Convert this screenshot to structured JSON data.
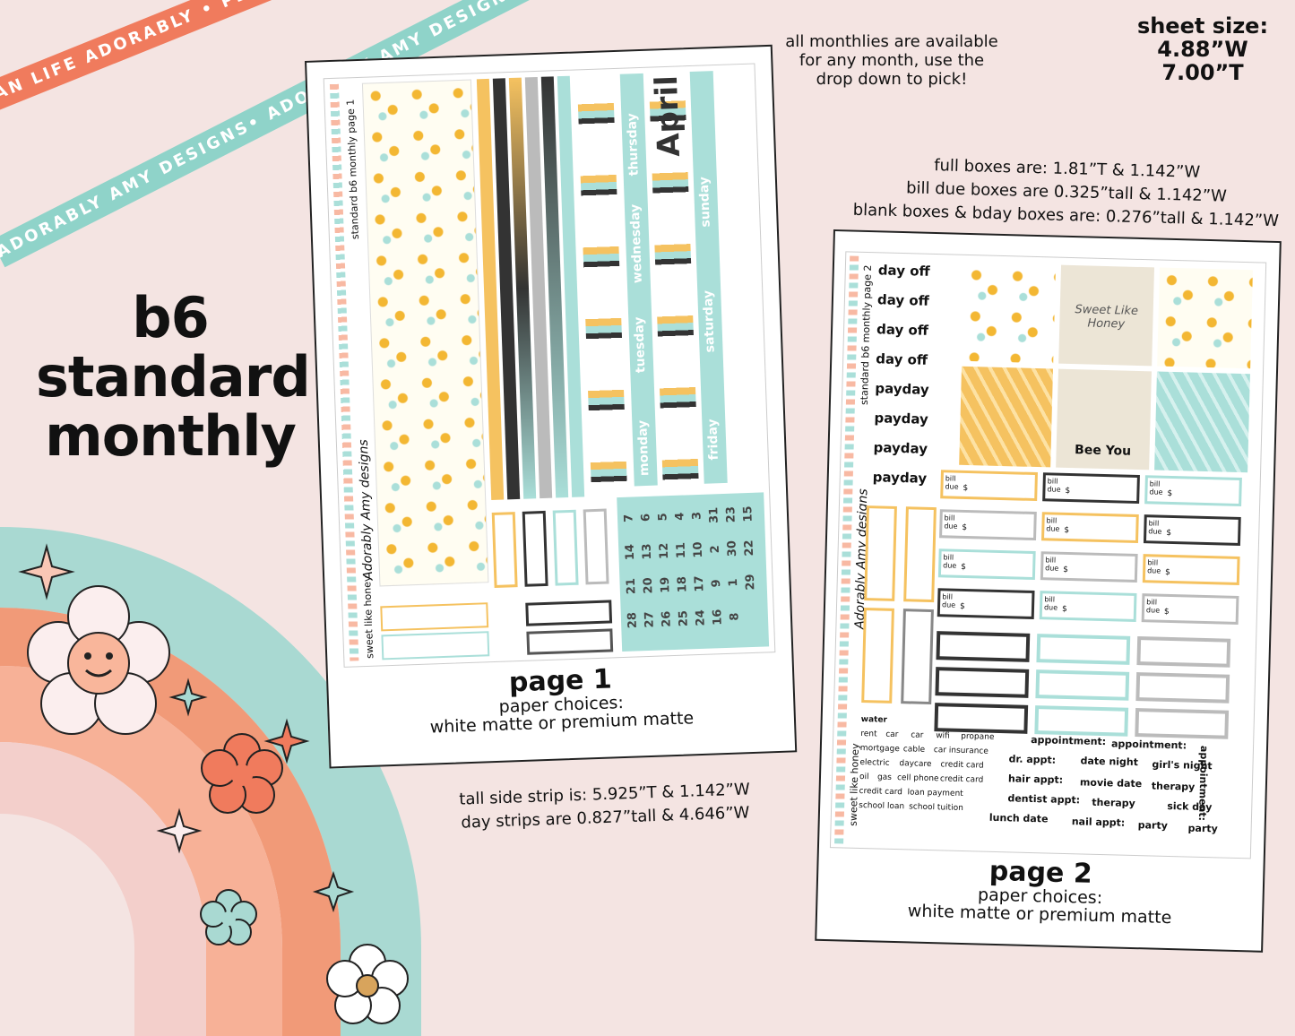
{
  "ribbons": {
    "top_text": "PLAN LIFE ADORABLY • PLAN LIFE ADORABLY • PLAN LIFE ADORABLY • PLAN LIFE ADORABLY •",
    "bottom_text": "ADORABLY AMY DESIGNS• ADORABLY AMY DESIGNS• ADORABLY AMY DESIGNS• ADORABLY AMY DESIGNS•",
    "top_color": "#f07b5d",
    "bottom_color": "#8fd3c9"
  },
  "title": {
    "line1": "b6",
    "line2": "standard",
    "line3": "monthly"
  },
  "notes": {
    "availability": [
      "all monthlies are available",
      "for any month, use the",
      "drop down to pick!"
    ],
    "sheet_size": [
      "sheet size:",
      "4.88”W",
      "7.00”T"
    ],
    "boxes": [
      "full boxes are: 1.81”T & 1.142”W",
      "bill due boxes are 0.325”tall & 1.142”W",
      "blank boxes & bday boxes are: 0.276”tall & 1.142”W"
    ],
    "strips": [
      "tall side strip is: 5.925”T & 1.142”W",
      "day strips are 0.827”tall & 4.646”W"
    ]
  },
  "page1": {
    "caption": "page 1",
    "paper": [
      "paper choices:",
      "white matte or premium matte"
    ],
    "side_label": "standard b6 monthly page 1",
    "theme": "sweet like honey",
    "brand": "Adorably Amy designs",
    "month": "April",
    "days": [
      "thursday",
      "wednesday",
      "tuesday",
      "monday",
      "sunday",
      "saturday",
      "friday"
    ],
    "dates": [
      "7",
      "14",
      "21",
      "28",
      "6",
      "13",
      "20",
      "27",
      "5",
      "12",
      "19",
      "26",
      "4",
      "11",
      "18",
      "25",
      "3",
      "10",
      "17",
      "24",
      "31",
      "2",
      "9",
      "16",
      "23",
      "30",
      "1",
      "8",
      "15",
      "22",
      "29"
    ]
  },
  "page2": {
    "caption": "page 2",
    "paper": [
      "paper choices:",
      "white matte or premium matte"
    ],
    "side_label": "standard b6 monthly page 2",
    "theme": "sweet like honey",
    "brand": "Adorably Amy designs",
    "labels": [
      "day off",
      "day off",
      "day off",
      "day off",
      "payday",
      "payday",
      "payday",
      "payday"
    ],
    "sweet_text": "Sweet Like Honey",
    "bee_text": "Bee You",
    "bill_label": "bill due",
    "dollar": "$",
    "water": "water",
    "bills": [
      "rent",
      "car",
      "car",
      "wifi",
      "propane",
      "mortgage",
      "cable",
      "car insurance",
      "electric",
      "daycare",
      "credit card",
      "oil",
      "gas",
      "cell phone",
      "credit card",
      "credit card",
      "loan payment",
      "school loan",
      "school tuition"
    ],
    "appointments": [
      "appointment:",
      "appointment:",
      "dr. appt:",
      "date night",
      "girl's night",
      "hair appt:",
      "movie date",
      "therapy",
      "dentist appt:",
      "therapy",
      "sick day",
      "lunch date",
      "nail appt:",
      "party",
      "party",
      "appointment:"
    ]
  },
  "colors": {
    "yellow": "#f5c260",
    "mint": "#aadfd9",
    "black": "#333333",
    "gray": "#aaaaaa",
    "peach": "#f8a488",
    "pink": "#f0c6c3"
  }
}
